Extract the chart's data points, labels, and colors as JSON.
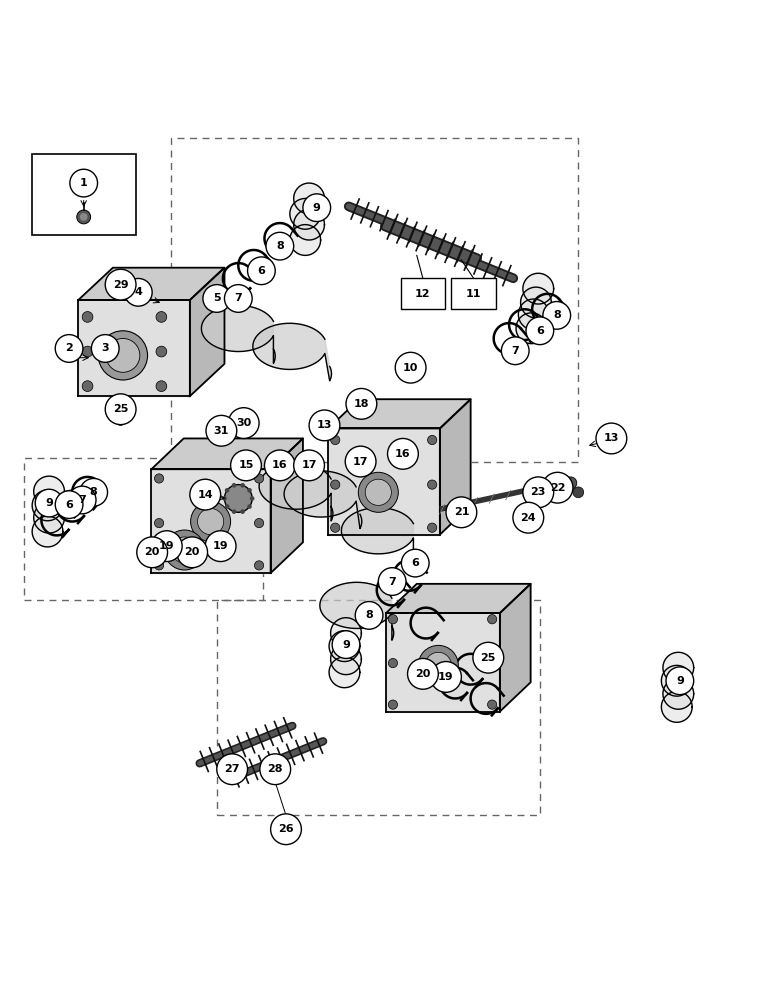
{
  "background_color": "#ffffff",
  "line_color": "#000000",
  "dashed_color": "#666666",
  "fig_width": 7.72,
  "fig_height": 10.0
}
